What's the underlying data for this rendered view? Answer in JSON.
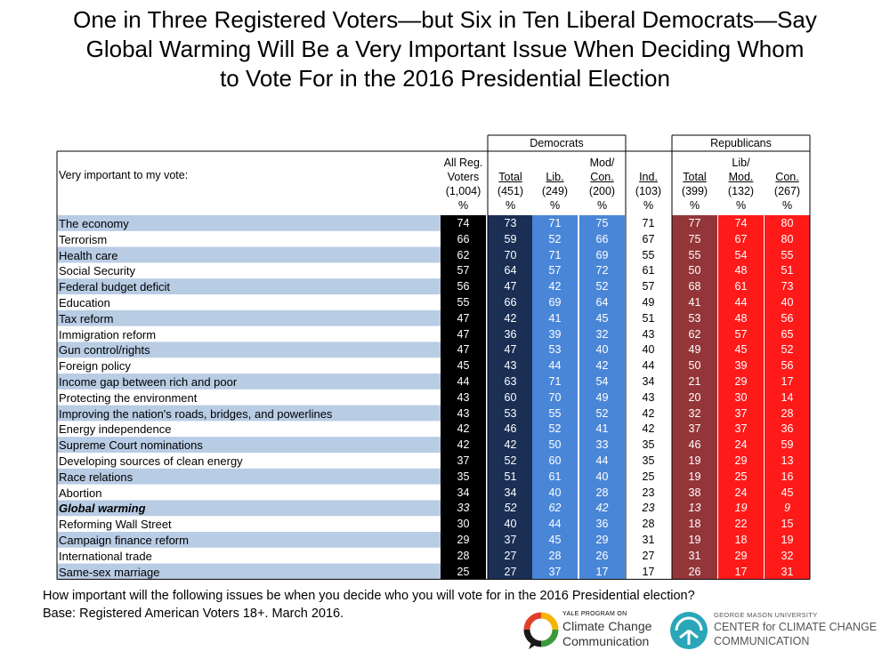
{
  "title": {
    "line1": "One in Three Registered Voters—but Six in Ten Liberal Democrats—Say",
    "line2": "Global Warming Will Be a Very Important Issue When Deciding Whom",
    "line3": "to Vote For in the 2016 Presidential Election"
  },
  "table": {
    "row_header": "Very important to my vote:",
    "groups": {
      "democrats": "Democrats",
      "republicans": "Republicans"
    },
    "columns": [
      {
        "lines": [
          "All Reg.",
          "Voters"
        ],
        "n": "(1,004)",
        "unit": "%",
        "color": "#000000",
        "text": "#ffffff",
        "underline_last": false
      },
      {
        "lines": [
          "Total"
        ],
        "n": "(451)",
        "unit": "%",
        "color": "#1b2f55",
        "text": "#ffffff",
        "underline_last": true
      },
      {
        "lines": [
          "Lib."
        ],
        "n": "(249)",
        "unit": "%",
        "color": "#4a86d8",
        "text": "#ffffff",
        "underline_last": true
      },
      {
        "lines": [
          "Mod/",
          "Con."
        ],
        "n": "(200)",
        "unit": "%",
        "color": "#4a86d8",
        "text": "#ffffff",
        "underline_last": true
      },
      {
        "lines": [
          "Ind."
        ],
        "n": "(103)",
        "unit": "%",
        "color": "#ffffff",
        "text": "#000000",
        "underline_last": true
      },
      {
        "lines": [
          "Total"
        ],
        "n": "(399)",
        "unit": "%",
        "color": "#943639",
        "text": "#ffffff",
        "underline_last": true
      },
      {
        "lines": [
          "Lib/",
          "Mod."
        ],
        "n": "(132)",
        "unit": "%",
        "color": "#ff1a1a",
        "text": "#ffffff",
        "underline_last": true
      },
      {
        "lines": [
          "Con."
        ],
        "n": "(267)",
        "unit": "%",
        "color": "#ff1a1a",
        "text": "#ffffff",
        "underline_last": true
      }
    ],
    "stripe_color": "#b8cce4"
  },
  "chart_data": {
    "type": "table",
    "columns": [
      "All Reg. Voters (1,004)",
      "Democrats Total (451)",
      "Democrats Lib. (249)",
      "Democrats Mod/Con. (200)",
      "Ind. (103)",
      "Republicans Total (399)",
      "Republicans Lib/Mod. (132)",
      "Republicans Con. (267)"
    ],
    "unit": "%",
    "rows": [
      {
        "label": "The economy",
        "values": [
          74,
          73,
          71,
          75,
          71,
          77,
          74,
          80
        ]
      },
      {
        "label": "Terrorism",
        "values": [
          66,
          59,
          52,
          66,
          67,
          75,
          67,
          80
        ]
      },
      {
        "label": "Health care",
        "values": [
          62,
          70,
          71,
          69,
          55,
          55,
          54,
          55
        ]
      },
      {
        "label": "Social Security",
        "values": [
          57,
          64,
          57,
          72,
          61,
          50,
          48,
          51
        ]
      },
      {
        "label": "Federal budget deficit",
        "values": [
          56,
          47,
          42,
          52,
          57,
          68,
          61,
          73
        ]
      },
      {
        "label": "Education",
        "values": [
          55,
          66,
          69,
          64,
          49,
          41,
          44,
          40
        ]
      },
      {
        "label": "Tax reform",
        "values": [
          47,
          42,
          41,
          45,
          51,
          53,
          48,
          56
        ]
      },
      {
        "label": "Immigration reform",
        "values": [
          47,
          36,
          39,
          32,
          43,
          62,
          57,
          65
        ]
      },
      {
        "label": "Gun control/rights",
        "values": [
          47,
          47,
          53,
          40,
          40,
          49,
          45,
          52
        ]
      },
      {
        "label": "Foreign policy",
        "values": [
          45,
          43,
          44,
          42,
          44,
          50,
          39,
          56
        ]
      },
      {
        "label": "Income gap between rich and poor",
        "values": [
          44,
          63,
          71,
          54,
          34,
          21,
          29,
          17
        ]
      },
      {
        "label": "Protecting the environment",
        "values": [
          43,
          60,
          70,
          49,
          43,
          20,
          30,
          14
        ]
      },
      {
        "label": "Improving the nation's roads, bridges, and powerlines",
        "values": [
          43,
          53,
          55,
          52,
          42,
          32,
          37,
          28
        ]
      },
      {
        "label": "Energy independence",
        "values": [
          42,
          46,
          52,
          41,
          42,
          37,
          37,
          36
        ]
      },
      {
        "label": "Supreme Court nominations",
        "values": [
          42,
          42,
          50,
          33,
          35,
          46,
          24,
          59
        ]
      },
      {
        "label": "Developing sources of clean energy",
        "values": [
          37,
          52,
          60,
          44,
          35,
          19,
          29,
          13
        ]
      },
      {
        "label": "Race relations",
        "values": [
          35,
          51,
          61,
          40,
          25,
          19,
          25,
          16
        ]
      },
      {
        "label": "Abortion",
        "values": [
          34,
          34,
          40,
          28,
          23,
          38,
          24,
          45
        ]
      },
      {
        "label": "Global warming",
        "values": [
          33,
          52,
          62,
          42,
          23,
          13,
          19,
          9
        ],
        "highlight": true
      },
      {
        "label": "Reforming Wall Street",
        "values": [
          30,
          40,
          44,
          36,
          28,
          18,
          22,
          15
        ]
      },
      {
        "label": "Campaign finance reform",
        "values": [
          29,
          37,
          45,
          29,
          31,
          19,
          18,
          19
        ]
      },
      {
        "label": "International trade",
        "values": [
          28,
          27,
          28,
          26,
          27,
          31,
          29,
          32
        ]
      },
      {
        "label": "Same-sex marriage",
        "values": [
          25,
          27,
          37,
          17,
          17,
          26,
          17,
          31
        ]
      }
    ]
  },
  "footer": {
    "question": "How important will the following issues be when you decide who you will vote for in the 2016 Presidential election?",
    "base": "Base: Registered American Voters 18+. March 2016."
  },
  "logos": {
    "yale": {
      "small": "YALE PROGRAM ON",
      "line1": "Climate Change",
      "line2": "Communication"
    },
    "gmu": {
      "small": "GEORGE MASON UNIVERSITY",
      "line1": "CENTER for CLIMATE CHANGE",
      "line2": "COMMUNICATION"
    }
  }
}
